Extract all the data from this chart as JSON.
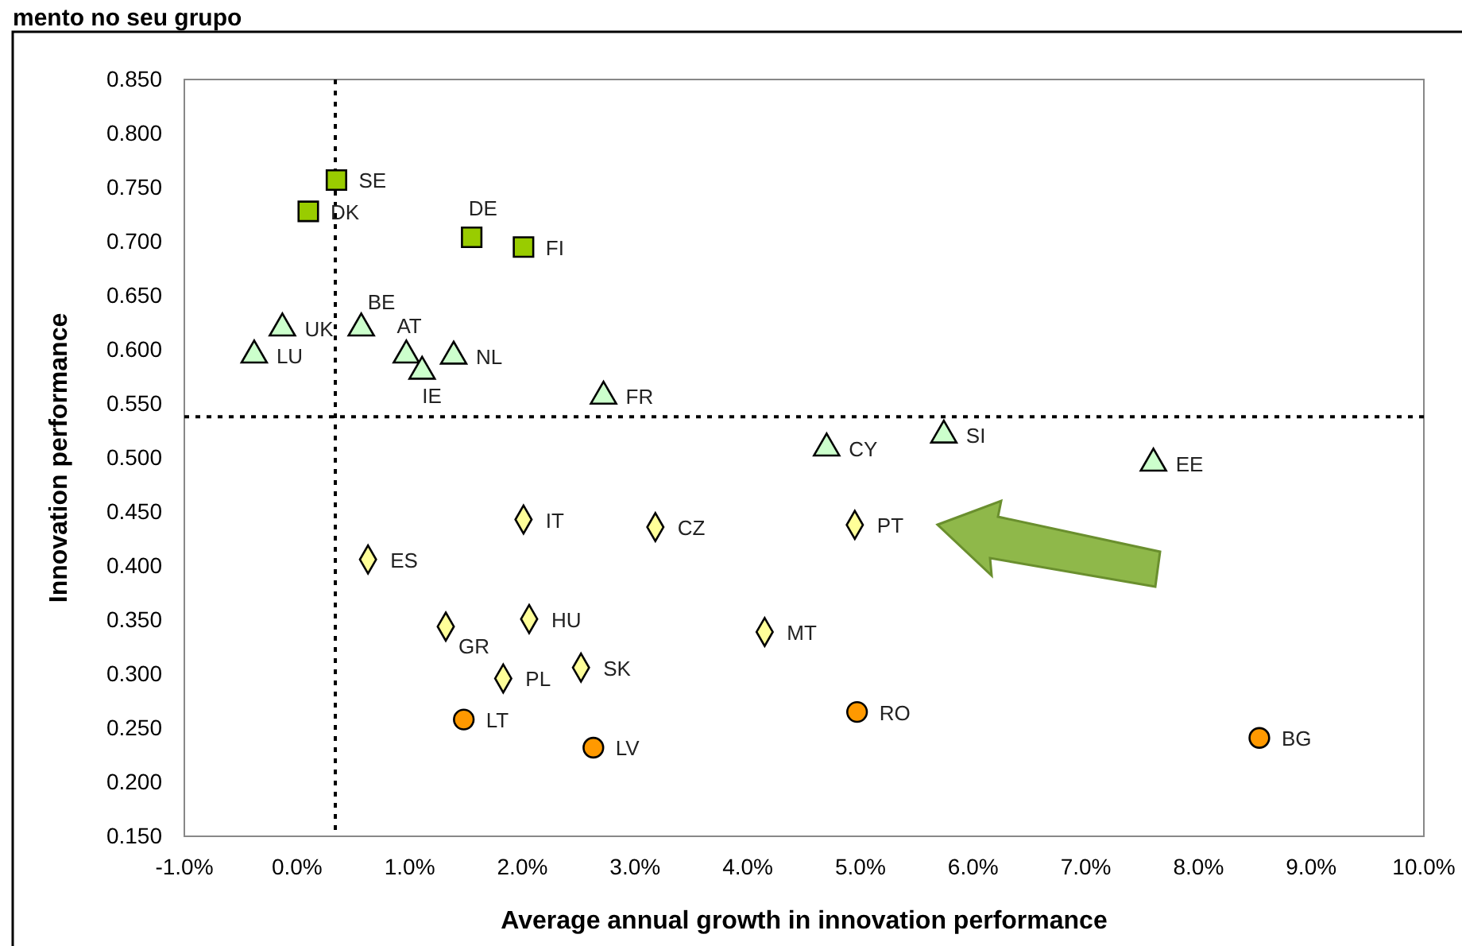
{
  "chart_data": {
    "type": "scatter",
    "title": "mento no seu grupo",
    "xlabel": "Average annual growth in innovation performance",
    "ylabel": "Innovation performance",
    "xlim": [
      -1,
      10
    ],
    "xticks": [
      {
        "value": -1,
        "label": "-1.0%"
      },
      {
        "value": 0,
        "label": "0.0%"
      },
      {
        "value": 1,
        "label": "1.0%"
      },
      {
        "value": 2,
        "label": "2.0%"
      },
      {
        "value": 3,
        "label": "3.0%"
      },
      {
        "value": 4,
        "label": "4.0%"
      },
      {
        "value": 5,
        "label": "5.0%"
      },
      {
        "value": 6,
        "label": "6.0%"
      },
      {
        "value": 7,
        "label": "7.0%"
      },
      {
        "value": 8,
        "label": "8.0%"
      },
      {
        "value": 9,
        "label": "9.0%"
      },
      {
        "value": 10,
        "label": "10.0%"
      }
    ],
    "ylim": [
      0.15,
      0.85
    ],
    "yticks": [
      {
        "value": 0.15,
        "label": "0.150"
      },
      {
        "value": 0.2,
        "label": "0.200"
      },
      {
        "value": 0.25,
        "label": "0.250"
      },
      {
        "value": 0.3,
        "label": "0.300"
      },
      {
        "value": 0.35,
        "label": "0.350"
      },
      {
        "value": 0.4,
        "label": "0.400"
      },
      {
        "value": 0.45,
        "label": "0.450"
      },
      {
        "value": 0.5,
        "label": "0.500"
      },
      {
        "value": 0.55,
        "label": "0.550"
      },
      {
        "value": 0.6,
        "label": "0.600"
      },
      {
        "value": 0.65,
        "label": "0.650"
      },
      {
        "value": 0.7,
        "label": "0.700"
      },
      {
        "value": 0.75,
        "label": "0.750"
      },
      {
        "value": 0.8,
        "label": "0.800"
      },
      {
        "value": 0.85,
        "label": "0.850"
      }
    ],
    "grid": false,
    "series": [
      {
        "color": "#99cc00",
        "marker": "square",
        "x": [
          0.35,
          0.1,
          1.55,
          2.01
        ],
        "values": [
          0.757,
          0.728,
          0.704,
          0.695
        ]
      },
      {
        "color": "#ccffcc",
        "marker": "triangle",
        "x": [
          -0.13,
          -0.38,
          0.57,
          0.97,
          1.11,
          1.39,
          2.72,
          4.7,
          5.74,
          7.6
        ],
        "values": [
          0.62,
          0.595,
          0.62,
          0.595,
          0.58,
          0.594,
          0.557,
          0.509,
          0.521,
          0.495
        ]
      },
      {
        "color": "#ffff99",
        "marker": "diamond",
        "x": [
          2.01,
          3.18,
          0.63,
          1.32,
          2.06,
          2.52,
          1.83,
          4.95,
          4.15
        ],
        "values": [
          0.443,
          0.436,
          0.406,
          0.344,
          0.351,
          0.306,
          0.296,
          0.438,
          0.339
        ]
      },
      {
        "color": "#ff9900",
        "marker": "circle",
        "x": [
          1.48,
          2.63,
          4.97,
          8.54
        ],
        "values": [
          0.258,
          0.232,
          0.265,
          0.241
        ]
      }
    ],
    "ref_lines": [
      {
        "axis": "x",
        "value": 0.34,
        "line_style": "dotted"
      },
      {
        "axis": "y",
        "value": 0.538,
        "line_style": "dotted"
      }
    ],
    "annotations": [
      {
        "text": "SE",
        "x": 0.35,
        "y": 0.757
      },
      {
        "text": "DK",
        "x": 0.1,
        "y": 0.728
      },
      {
        "text": "DE",
        "x": 1.55,
        "y": 0.704
      },
      {
        "text": "FI",
        "x": 2.01,
        "y": 0.695
      },
      {
        "text": "UK",
        "x": -0.13,
        "y": 0.62
      },
      {
        "text": "LU",
        "x": -0.38,
        "y": 0.595
      },
      {
        "text": "BE",
        "x": 0.57,
        "y": 0.62
      },
      {
        "text": "AT",
        "x": 0.97,
        "y": 0.595
      },
      {
        "text": "IE",
        "x": 1.11,
        "y": 0.58
      },
      {
        "text": "NL",
        "x": 1.39,
        "y": 0.594
      },
      {
        "text": "FR",
        "x": 2.72,
        "y": 0.557
      },
      {
        "text": "CY",
        "x": 4.7,
        "y": 0.509
      },
      {
        "text": "SI",
        "x": 5.74,
        "y": 0.521
      },
      {
        "text": "EE",
        "x": 7.6,
        "y": 0.495
      },
      {
        "text": "IT",
        "x": 2.01,
        "y": 0.443
      },
      {
        "text": "CZ",
        "x": 3.18,
        "y": 0.436
      },
      {
        "text": "ES",
        "x": 0.63,
        "y": 0.406
      },
      {
        "text": "GR",
        "x": 1.32,
        "y": 0.344
      },
      {
        "text": "HU",
        "x": 2.06,
        "y": 0.351
      },
      {
        "text": "SK",
        "x": 2.52,
        "y": 0.306
      },
      {
        "text": "PL",
        "x": 1.83,
        "y": 0.296
      },
      {
        "text": "PT",
        "x": 4.95,
        "y": 0.438
      },
      {
        "text": "MT",
        "x": 4.15,
        "y": 0.339
      },
      {
        "text": "LT",
        "x": 1.48,
        "y": 0.258
      },
      {
        "text": "LV",
        "x": 2.63,
        "y": 0.232
      },
      {
        "text": "RO",
        "x": 4.97,
        "y": 0.265
      },
      {
        "text": "BG",
        "x": 8.54,
        "y": 0.241
      }
    ]
  }
}
